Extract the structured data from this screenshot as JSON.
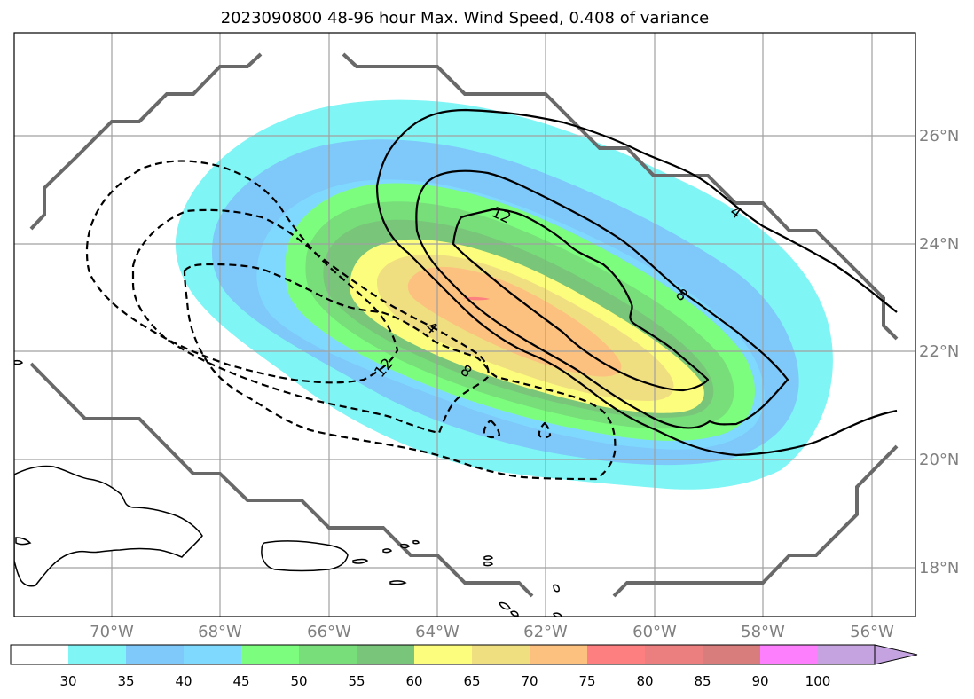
{
  "map": {
    "title": "2023090800 48-96 hour Max. Wind Speed, 0.408 of variance",
    "lon_ticks": [
      "70°W",
      "68°W",
      "66°W",
      "64°W",
      "62°W",
      "60°W",
      "58°W",
      "56°W"
    ],
    "lat_ticks": [
      "26°N",
      "24°N",
      "22°N",
      "20°N",
      "18°N"
    ],
    "extent": {
      "lon_min": -71.8,
      "lon_max": -55.2,
      "lat_min": 17.1,
      "lat_max": 27.8
    },
    "gridlines": true
  },
  "colorbar": {
    "levels": [
      "30",
      "35",
      "40",
      "45",
      "50",
      "55",
      "60",
      "65",
      "70",
      "75",
      "80",
      "85",
      "90",
      "100"
    ],
    "colors": [
      "#ffffff",
      "#7ff5f5",
      "#7ec8fa",
      "#7fd9ff",
      "#7dfd7e",
      "#77de7a",
      "#79c57a",
      "#fdfd7d",
      "#f0df80",
      "#fcc17f",
      "#fd7f7f",
      "#eb7f7f",
      "#d97c7c",
      "#fe7ffe",
      "#c4a3e0"
    ],
    "extend": "max"
  },
  "contours": {
    "positive_labels": [
      "4",
      "8",
      "12"
    ],
    "negative_labels": [
      "4",
      "8",
      "12"
    ]
  }
}
